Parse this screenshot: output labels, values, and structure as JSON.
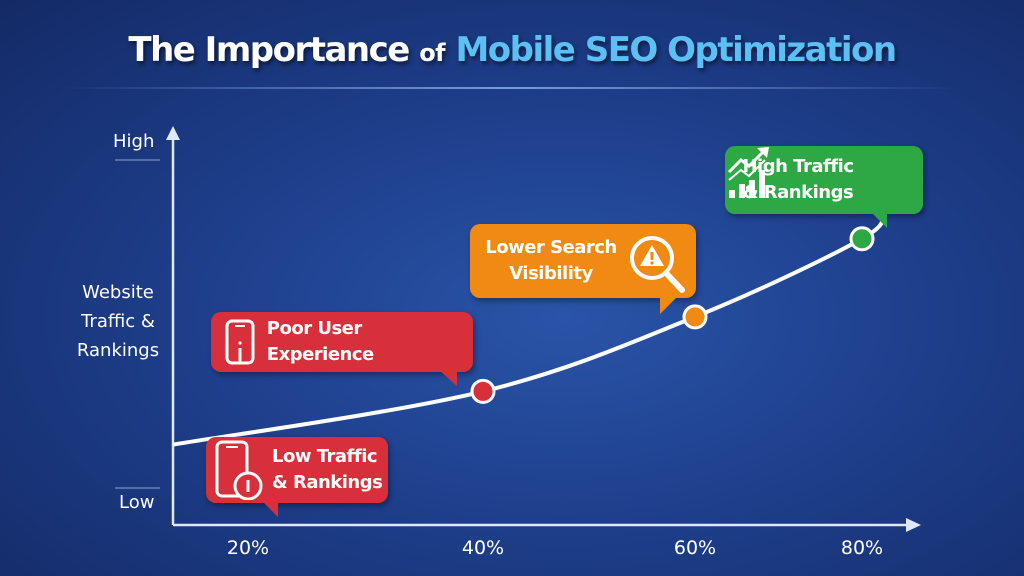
{
  "chart_data": {
    "type": "line",
    "title_parts": [
      "The Importance",
      "of",
      "Mobile SEO Optimization"
    ],
    "ylabel": "Website Traffic & Rankings",
    "y_tick_labels": [
      "Low",
      "High"
    ],
    "x_tick_labels": [
      "20%",
      "40%",
      "60%",
      "80%"
    ],
    "x": [
      40,
      60,
      80
    ],
    "y_relative": [
      0.32,
      0.53,
      0.75
    ],
    "curve_start_relative": 0.17,
    "point_colors": [
      "#d8303a",
      "#f08a12",
      "#2ea844"
    ],
    "callouts": [
      {
        "text_lines": [
          "Poor User Experience"
        ],
        "icon": "smartphone-icon",
        "color": "#d8303a"
      },
      {
        "text_lines": [
          "Lower Search",
          "Visibility"
        ],
        "icon": "magnifier-warning-icon",
        "color": "#f08a12"
      },
      {
        "text_lines": [
          "High Traffic",
          "& Rankings"
        ],
        "icon": "growth-chart-icon",
        "color": "#2ea844"
      },
      {
        "text_lines": [
          "Low Traffic",
          "& Rankings"
        ],
        "icon": "phone-alert-icon",
        "color": "#d8303a"
      }
    ],
    "grid": false,
    "accent_color": "#5cc0f5"
  }
}
